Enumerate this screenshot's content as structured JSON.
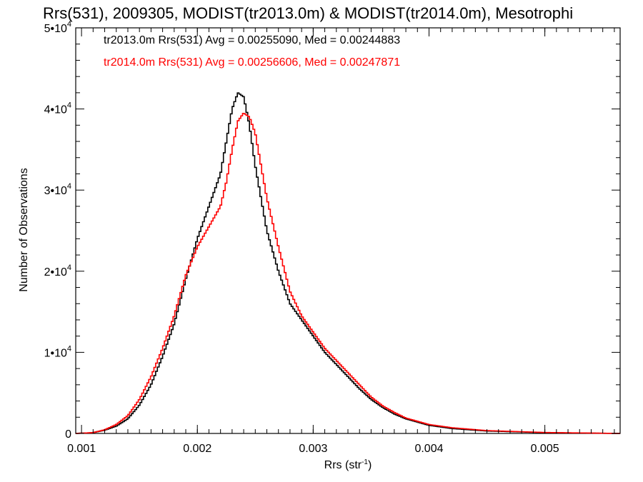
{
  "chart_data": {
    "type": "line",
    "title": "Rrs(531), 2009305, MODIST(tr2013.0m) & MODIST(tr2014.0m), Mesotrophi",
    "xlabel_main": "Rrs (str",
    "xlabel_sup": "-1",
    "xlabel_close": ")",
    "ylabel": "Number of Observations",
    "xlim": [
      0.00095,
      0.00565
    ],
    "ylim": [
      0,
      50000
    ],
    "grid": false,
    "x_ticks": [
      {
        "value": 0.001,
        "label": "0.001"
      },
      {
        "value": 0.002,
        "label": "0.002"
      },
      {
        "value": 0.003,
        "label": "0.003"
      },
      {
        "value": 0.004,
        "label": "0.004"
      },
      {
        "value": 0.005,
        "label": "0.005"
      }
    ],
    "y_ticks": [
      {
        "value": 0,
        "label": "0",
        "sup": ""
      },
      {
        "value": 10000,
        "label": "1•10",
        "sup": "4"
      },
      {
        "value": 20000,
        "label": "2•10",
        "sup": "4"
      },
      {
        "value": 30000,
        "label": "3•10",
        "sup": "4"
      },
      {
        "value": 40000,
        "label": "4•10",
        "sup": "4"
      },
      {
        "value": 50000,
        "label": "5•10",
        "sup": "4"
      }
    ],
    "annotations": [
      "tr2013.0m Rrs(531) Avg = 0.00255090, Med = 0.00244883",
      "tr2014.0m Rrs(531) Avg = 0.00256606, Med = 0.00247871"
    ],
    "series": [
      {
        "color": "#000000",
        "x": [
          0.00095,
          0.0011,
          0.0012,
          0.0013,
          0.0014,
          0.0015,
          0.0016,
          0.0017,
          0.0018,
          0.0019,
          0.002,
          0.0021,
          0.0022,
          0.00225,
          0.0023,
          0.00235,
          0.0024,
          0.00245,
          0.0025,
          0.0026,
          0.0027,
          0.0028,
          0.0029,
          0.003,
          0.0031,
          0.0032,
          0.0033,
          0.0034,
          0.0035,
          0.0036,
          0.0037,
          0.0038,
          0.004,
          0.0042,
          0.0045,
          0.005,
          0.00565
        ],
        "y": [
          0,
          100,
          400,
          900,
          1800,
          3500,
          6000,
          9500,
          13500,
          19000,
          24000,
          28000,
          32000,
          36000,
          40000,
          42000,
          41500,
          38000,
          33000,
          25000,
          20000,
          16000,
          14000,
          12000,
          10000,
          8500,
          7000,
          5500,
          4200,
          3200,
          2400,
          1800,
          1000,
          600,
          300,
          100,
          0
        ]
      },
      {
        "color": "#ff0000",
        "x": [
          0.00095,
          0.0011,
          0.0012,
          0.0013,
          0.0014,
          0.0015,
          0.0016,
          0.0017,
          0.0018,
          0.0019,
          0.002,
          0.0021,
          0.0022,
          0.00225,
          0.0023,
          0.00235,
          0.0024,
          0.00245,
          0.0025,
          0.0026,
          0.0027,
          0.0028,
          0.0029,
          0.003,
          0.0031,
          0.0032,
          0.0033,
          0.0034,
          0.0035,
          0.0036,
          0.0037,
          0.0038,
          0.004,
          0.0042,
          0.0045,
          0.005,
          0.00565
        ],
        "y": [
          0,
          100,
          450,
          1100,
          2200,
          4200,
          7000,
          10500,
          14500,
          19500,
          23000,
          25500,
          28000,
          31000,
          35000,
          38500,
          39500,
          39000,
          37000,
          29000,
          23000,
          17500,
          14500,
          12500,
          10500,
          9000,
          7500,
          6000,
          4500,
          3400,
          2600,
          1900,
          1100,
          700,
          350,
          120,
          0
        ]
      }
    ]
  }
}
